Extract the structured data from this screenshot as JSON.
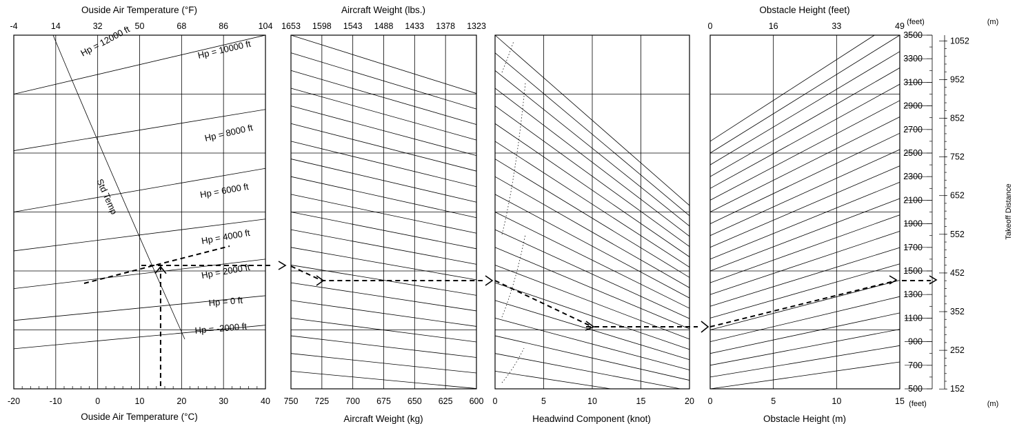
{
  "chart_data": {
    "type": "line",
    "chart_kind": "takeoff-distance-nomogram",
    "panels": [
      {
        "id": "temperature",
        "xlabel_bottom": "Ouside Air Temperature (°C)",
        "xlabel_top": "Ouside Air Temperature (°F)",
        "x_ticks_bottom": [
          "-20",
          "-10",
          "0",
          "10",
          "20",
          "30",
          "40"
        ],
        "x_ticks_top": [
          "-4",
          "14",
          "32",
          "50",
          "68",
          "86",
          "104"
        ],
        "xlim": [
          -20,
          40
        ],
        "pressure_altitude_lines": [
          {
            "label": "Hp = 12000 ft",
            "x": [
              -20,
              40
            ],
            "y": [
              null,
              null
            ]
          },
          {
            "label": "Hp = 10000 ft",
            "x": [
              -20,
              40
            ],
            "y": [
              3000,
              3500
            ]
          },
          {
            "label": "Hp = 8000 ft",
            "x": [
              -20,
              40
            ],
            "y": [
              2520,
              2870
            ]
          },
          {
            "label": "Hp = 6000 ft",
            "x": [
              -20,
              40
            ],
            "y": [
              2000,
              2370
            ]
          },
          {
            "label": "Hp = 4000 ft",
            "x": [
              -20,
              40
            ],
            "y": [
              1670,
              1940
            ]
          },
          {
            "label": "Hp = 2000 ft",
            "x": [
              -20,
              40
            ],
            "y": [
              1350,
              1600
            ]
          },
          {
            "label": "Hp = 0 ft",
            "x": [
              -20,
              40
            ],
            "y": [
              1080,
              1290
            ]
          },
          {
            "label": "Hp = -2000 ft",
            "x": [
              -20,
              40
            ],
            "y": [
              840,
              1040
            ]
          }
        ],
        "std_temp_label": "Std Temp",
        "std_temp_curve": {
          "x": [
            -9.5,
            -4,
            1,
            5,
            10,
            15,
            20.5
          ],
          "y": [
            3500,
            2800,
            2200,
            1800,
            1400,
            1150,
            970
          ]
        }
      },
      {
        "id": "weight",
        "xlabel_bottom": "Aircraft Weight (kg)",
        "xlabel_top": "Aircraft Weight (lbs.)",
        "x_ticks_bottom": [
          "750",
          "725",
          "700",
          "675",
          "650",
          "625",
          "600"
        ],
        "x_ticks_top": [
          "1653",
          "1598",
          "1543",
          "1488",
          "1433",
          "1378",
          "1323"
        ],
        "xlim": [
          750,
          600
        ],
        "guide_line_starts_at_750kg": [
          3500,
          3350,
          3200,
          3050,
          2900,
          2750,
          2600,
          2450,
          2300,
          2150,
          2000,
          1850,
          1700,
          1550,
          1400,
          1250,
          1100,
          950,
          800,
          650,
          500
        ]
      },
      {
        "id": "headwind",
        "xlabel_bottom": "Headwind Component (knot)",
        "x_ticks_bottom": [
          "0",
          "5",
          "10",
          "15",
          "20"
        ],
        "xlim": [
          0,
          20
        ],
        "guide_line_starts_at_0kt": [
          3500,
          3350,
          3200,
          3050,
          2900,
          2750,
          2600,
          2450,
          2300,
          2150,
          2000,
          1850,
          1700,
          1550,
          1400,
          1250,
          1100,
          950,
          800,
          650
        ]
      },
      {
        "id": "obstacle",
        "xlabel_bottom": "Obstacle Height (m)",
        "xlabel_top": "Obstacle Height (feet)",
        "x_ticks_bottom": [
          "0",
          "5",
          "10",
          "15"
        ],
        "x_ticks_top": [
          "0",
          "16",
          "33",
          "49"
        ],
        "xlim": [
          0,
          15
        ],
        "guide_line_starts_at_0m": [
          2600,
          2500,
          2400,
          2300,
          2200,
          2100,
          2000,
          1900,
          1800,
          1700,
          1600,
          1500,
          1400,
          1300,
          1200,
          1100,
          1000,
          900,
          800,
          700,
          600,
          500
        ]
      }
    ],
    "y_axis_feet": {
      "unit_label": "(feet)",
      "ticks": [
        "500",
        "700",
        "900",
        "1100",
        "1300",
        "1500",
        "1700",
        "1900",
        "2100",
        "2300",
        "2500",
        "2700",
        "2900",
        "3100",
        "3300",
        "3500"
      ],
      "ylim": [
        500,
        3500
      ]
    },
    "y_axis_m": {
      "unit_label": "(m)",
      "ticks": [
        "152",
        "252",
        "352",
        "452",
        "552",
        "652",
        "752",
        "852",
        "952",
        "1052"
      ]
    },
    "ylabel_right": "Takeoff Distance",
    "x_unit_bottom_feet": "(feet)",
    "x_unit_bottom_m": "(m)",
    "example": {
      "oat_c": 15,
      "pressure_altitude_ft": 2000,
      "weight_kg": 725,
      "headwind_kt": 10,
      "obstacle_m": 15,
      "takeoff_distance_ft": 1430
    }
  }
}
